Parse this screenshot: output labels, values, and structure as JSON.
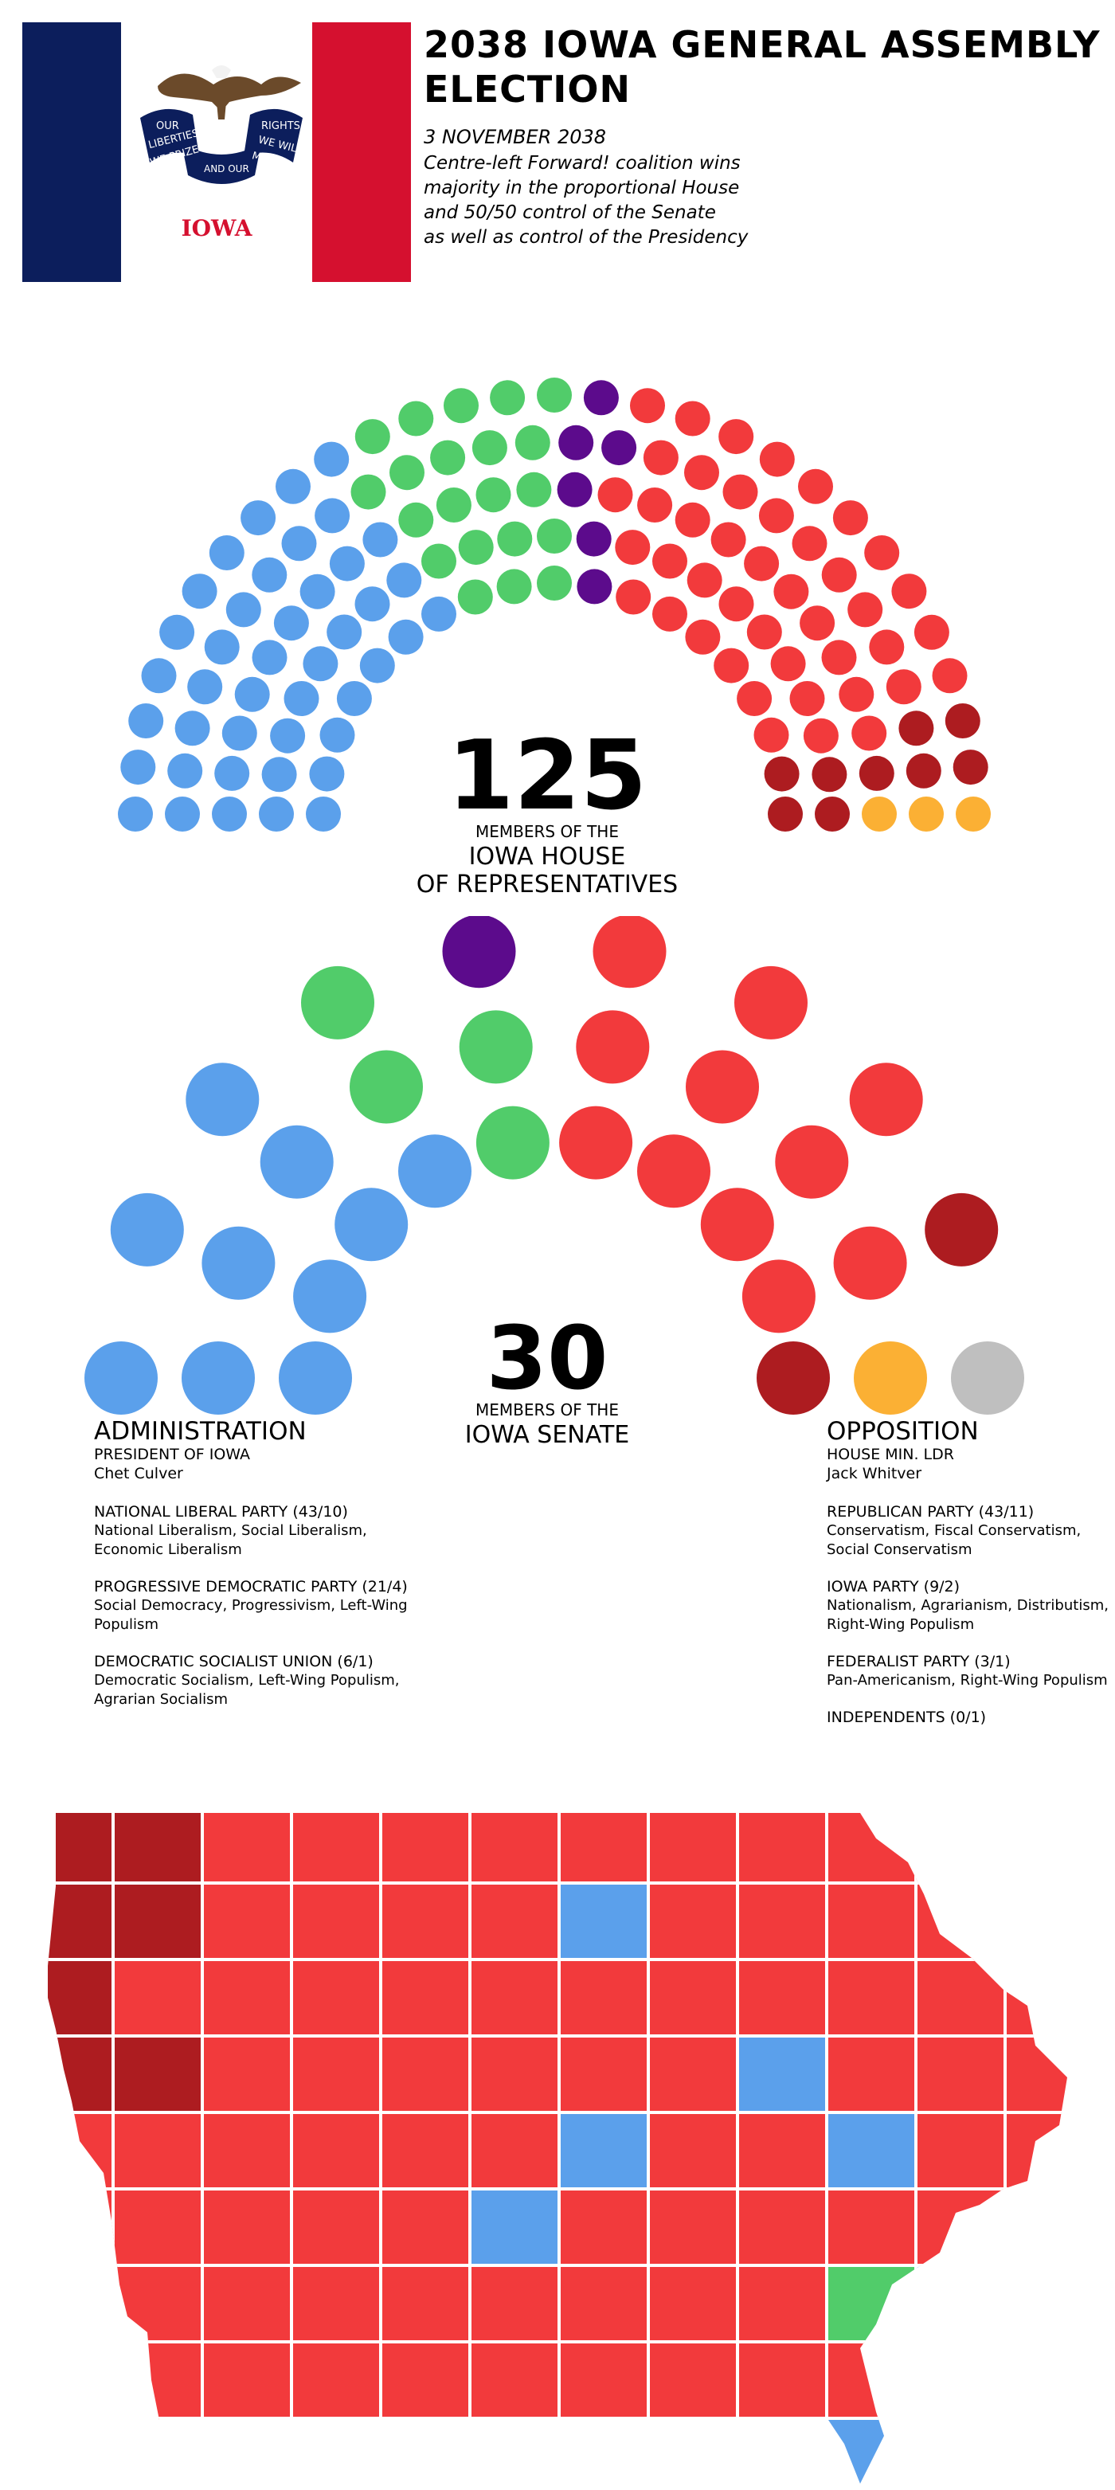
{
  "header": {
    "title": "2038 IOWA GENERAL ASSEMBLY ELECTION",
    "date": "3 NOVEMBER 2038",
    "subtitle_lines": [
      "Centre-left Forward! coalition wins",
      "majority in the proportional House",
      "and 50/50 control of the Senate",
      "as well as control of the Presidency"
    ]
  },
  "flag": {
    "banner_left": "OUR",
    "banner_left2": "LIBERTIES",
    "banner_left3": "WE PRIZE",
    "banner_right": "RIGHTS",
    "banner_right2": "WE WILL",
    "banner_right3": "MAINTAIN",
    "banner_mid": "AND OUR",
    "state": "IOWA",
    "colors": {
      "blue": "#0c1e5c",
      "white": "#ffffff",
      "red": "#d5102f"
    }
  },
  "colors": {
    "national_liberal": "#5ba0eb",
    "progressive_democratic": "#51cc6a",
    "democratic_socialist": "#5c0b8c",
    "republican": "#f23a3c",
    "iowa_party": "#ad1c20",
    "federalist": "#fbb034",
    "independent": "#bfbfbf"
  },
  "house": {
    "seats": "125",
    "label_line1": "MEMBERS OF THE",
    "label_line2": "IOWA HOUSE",
    "label_line3": "OF REPRESENTATIVES",
    "composition": [
      {
        "party": "national_liberal",
        "seats": 43
      },
      {
        "party": "progressive_democratic",
        "seats": 21
      },
      {
        "party": "democratic_socialist",
        "seats": 6
      },
      {
        "party": "republican",
        "seats": 43
      },
      {
        "party": "iowa_party",
        "seats": 9
      },
      {
        "party": "federalist",
        "seats": 3
      }
    ]
  },
  "senate": {
    "seats": "30",
    "label_line1": "MEMBERS OF THE",
    "label_line2": "IOWA SENATE",
    "composition": [
      {
        "party": "national_liberal",
        "seats": 10
      },
      {
        "party": "progressive_democratic",
        "seats": 4
      },
      {
        "party": "democratic_socialist",
        "seats": 1
      },
      {
        "party": "republican",
        "seats": 11
      },
      {
        "party": "iowa_party",
        "seats": 2
      },
      {
        "party": "federalist",
        "seats": 1
      },
      {
        "party": "independent",
        "seats": 1
      }
    ]
  },
  "administration": {
    "heading": "ADMINISTRATION",
    "role": "PRESIDENT OF IOWA",
    "leader": "Chet Culver",
    "parties": [
      {
        "name": "NATIONAL LIBERAL PARTY (43/10)",
        "desc": "National Liberalism, Social Liberalism, Economic Liberalism"
      },
      {
        "name": "PROGRESSIVE DEMOCRATIC PARTY (21/4)",
        "desc": "Social Democracy, Progressivism, Left-Wing Populism"
      },
      {
        "name": "DEMOCRATIC SOCIALIST UNION (6/1)",
        "desc": "Democratic Socialism, Left-Wing Populism, Agrarian Socialism"
      }
    ]
  },
  "opposition": {
    "heading": "OPPOSITION",
    "role": "HOUSE MIN. LDR",
    "leader": "Jack Whitver",
    "parties": [
      {
        "name": "REPUBLICAN PARTY (43/11)",
        "desc": "Conservatism, Fiscal Conservatism, Social Conservatism"
      },
      {
        "name": "IOWA PARTY (9/2)",
        "desc": "Nationalism, Agrarianism, Distributism, Right-Wing Populism"
      },
      {
        "name": "FEDERALIST PARTY (3/1)",
        "desc": "Pan-Americanism, Right-Wing Populism"
      },
      {
        "name": "INDEPENDENTS (0/1)",
        "desc": ""
      }
    ]
  },
  "map": {
    "default_party": "republican",
    "county_results": [
      {
        "party": "iowa_party",
        "count": 7
      },
      {
        "party": "national_liberal",
        "count": 7
      },
      {
        "party": "progressive_democratic",
        "count": 1
      },
      {
        "party": "republican",
        "count": 84
      }
    ]
  }
}
